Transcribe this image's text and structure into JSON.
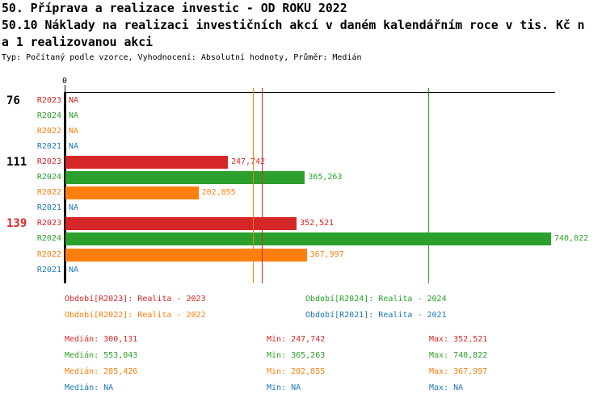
{
  "title": {
    "line1": "50. Příprava a realizace investic - OD ROKU 2022",
    "line2": "50.10 Náklady na realizaci investičních akcí v daném kalendářním roce v tis. Kč n",
    "line3": "a 1 realizovanou akci",
    "meta": "Typ: Počítaný podle vzorce, Vyhodnocení: Absolutní hodnoty, Průměr: Medián"
  },
  "colors": {
    "R2023": "#d62728",
    "R2024": "#2ca02c",
    "R2022": "#ff7f0e",
    "R2021": "#1f77b4",
    "axis": "#000000",
    "highlighted_group_label": "#d62728",
    "normal_group_label": "#000000"
  },
  "chart_data": {
    "type": "bar",
    "orientation": "horizontal",
    "axis": {
      "origin_label": "0",
      "max_value": 740822,
      "grid": false
    },
    "na_label": "NA",
    "series_order": [
      "R2023",
      "R2024",
      "R2022",
      "R2021"
    ],
    "groups": [
      {
        "label": "76",
        "highlighted": false,
        "bars": [
          {
            "series": "R2023",
            "value": null,
            "display": "NA"
          },
          {
            "series": "R2024",
            "value": null,
            "display": "NA"
          },
          {
            "series": "R2022",
            "value": null,
            "display": "NA"
          },
          {
            "series": "R2021",
            "value": null,
            "display": "NA"
          }
        ]
      },
      {
        "label": "111",
        "highlighted": false,
        "bars": [
          {
            "series": "R2023",
            "value": 247742,
            "display": "247,742"
          },
          {
            "series": "R2024",
            "value": 365263,
            "display": "365,263"
          },
          {
            "series": "R2022",
            "value": 202855,
            "display": "202,855"
          },
          {
            "series": "R2021",
            "value": null,
            "display": "NA"
          }
        ]
      },
      {
        "label": "139",
        "highlighted": true,
        "bars": [
          {
            "series": "R2023",
            "value": 352521,
            "display": "352,521"
          },
          {
            "series": "R2024",
            "value": 740822,
            "display": "740,822"
          },
          {
            "series": "R2022",
            "value": 367997,
            "display": "367,997"
          },
          {
            "series": "R2021",
            "value": null,
            "display": "NA"
          }
        ]
      }
    ],
    "median_markers": [
      {
        "series": "R2022",
        "value": 285426
      },
      {
        "series": "R2023",
        "value": 300131
      },
      {
        "series": "R2024",
        "value": 553043
      }
    ]
  },
  "legend": {
    "items": [
      {
        "series": "R2023",
        "label": "Období[R2023]: Realita - 2023"
      },
      {
        "series": "R2024",
        "label": "Období[R2024]: Realita - 2024"
      },
      {
        "series": "R2022",
        "label": "Období[R2022]: Realita - 2022"
      },
      {
        "series": "R2021",
        "label": "Období[R2021]: Realita - 2021"
      }
    ]
  },
  "stats": {
    "median_label": "Medián",
    "min_label": "Min",
    "max_label": "Max",
    "rows": [
      {
        "series": "R2023",
        "median": "300,131",
        "min": "247,742",
        "max": "352,521"
      },
      {
        "series": "R2024",
        "median": "553,043",
        "min": "365,263",
        "max": "740,822"
      },
      {
        "series": "R2022",
        "median": "285,426",
        "min": "202,855",
        "max": "367,997"
      },
      {
        "series": "R2021",
        "median": "NA",
        "min": "NA",
        "max": "NA"
      }
    ]
  }
}
